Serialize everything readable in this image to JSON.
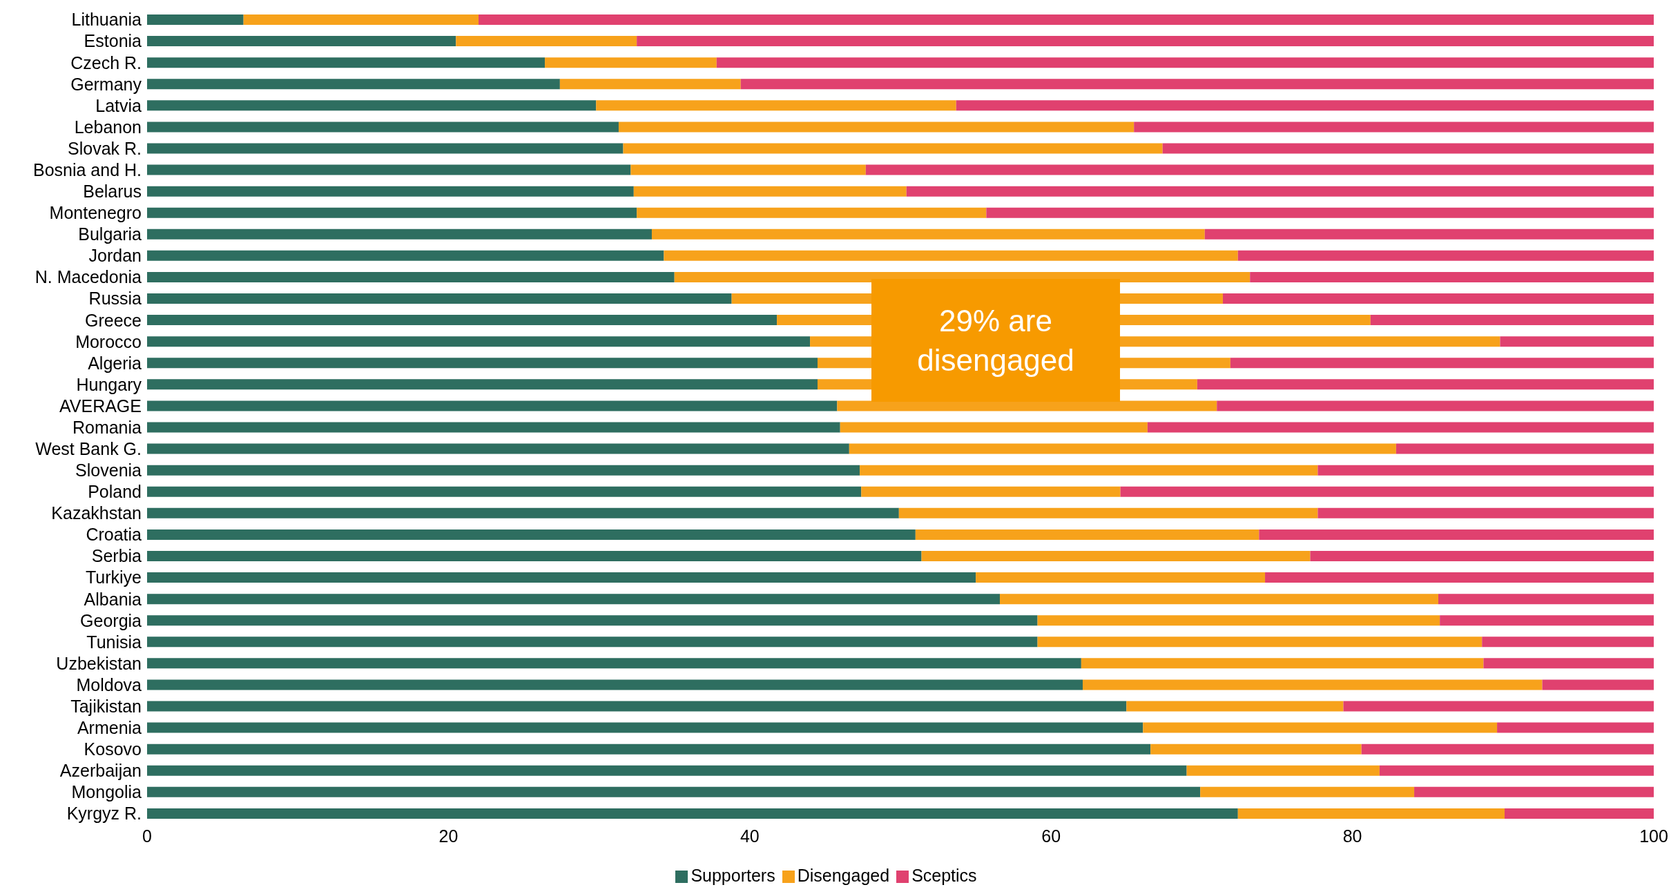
{
  "chart_data": {
    "type": "bar",
    "orientation": "horizontal",
    "stacked": true,
    "categories": [
      "Lithuania",
      "Estonia",
      "Czech R.",
      "Germany",
      "Latvia",
      "Lebanon",
      "Slovak R.",
      "Bosnia and H.",
      "Belarus",
      "Montenegro",
      "Bulgaria",
      "Jordan",
      "N. Macedonia",
      "Russia",
      "Greece",
      "Morocco",
      "Algeria",
      "Hungary",
      "AVERAGE",
      "Romania",
      "West Bank G.",
      "Slovenia",
      "Poland",
      "Kazakhstan",
      "Croatia",
      "Serbia",
      "Turkiye",
      "Albania",
      "Georgia",
      "Tunisia",
      "Uzbekistan",
      "Moldova",
      "Tajikistan",
      "Armenia",
      "Kosovo",
      "Azerbaijan",
      "Mongolia",
      "Kyrgyz R."
    ],
    "series": [
      {
        "name": "Supporters",
        "color": "#2e6e60",
        "values": [
          6.4,
          20.5,
          26.4,
          27.4,
          29.8,
          31.3,
          31.6,
          32.1,
          32.3,
          32.5,
          33.5,
          34.3,
          35.0,
          38.8,
          41.8,
          44.0,
          44.5,
          44.5,
          45.8,
          46.0,
          46.6,
          47.3,
          47.4,
          49.9,
          51.0,
          51.4,
          55.0,
          56.6,
          59.1,
          59.1,
          62.0,
          62.1,
          65.0,
          66.1,
          66.6,
          69.0,
          69.9,
          72.4
        ]
      },
      {
        "name": "Disengaged",
        "color": "#f7a21b",
        "values": [
          15.6,
          12.0,
          11.4,
          12.0,
          23.9,
          34.2,
          35.8,
          15.6,
          18.1,
          23.2,
          36.7,
          38.1,
          38.2,
          32.6,
          39.4,
          45.8,
          27.4,
          25.2,
          25.2,
          20.4,
          36.3,
          30.4,
          17.2,
          27.8,
          22.8,
          25.8,
          19.2,
          29.1,
          26.7,
          29.5,
          26.7,
          30.5,
          14.4,
          23.5,
          14.0,
          12.8,
          14.2,
          17.7
        ]
      },
      {
        "name": "Sceptics",
        "color": "#e0416f",
        "values": [
          78.0,
          67.5,
          62.2,
          60.6,
          46.3,
          34.5,
          32.6,
          52.3,
          49.6,
          44.3,
          29.8,
          27.6,
          26.8,
          28.6,
          18.8,
          10.2,
          28.1,
          30.3,
          29.0,
          33.6,
          17.1,
          22.3,
          35.4,
          22.3,
          26.2,
          22.8,
          25.8,
          14.3,
          14.2,
          11.4,
          11.3,
          7.4,
          20.6,
          10.4,
          19.4,
          18.2,
          15.9,
          9.9
        ]
      }
    ],
    "xlim": [
      0,
      100
    ],
    "xticks": [
      0,
      20,
      40,
      60,
      80,
      100
    ],
    "legend": "bottom",
    "annotations": [
      "29% are disengaged"
    ]
  }
}
